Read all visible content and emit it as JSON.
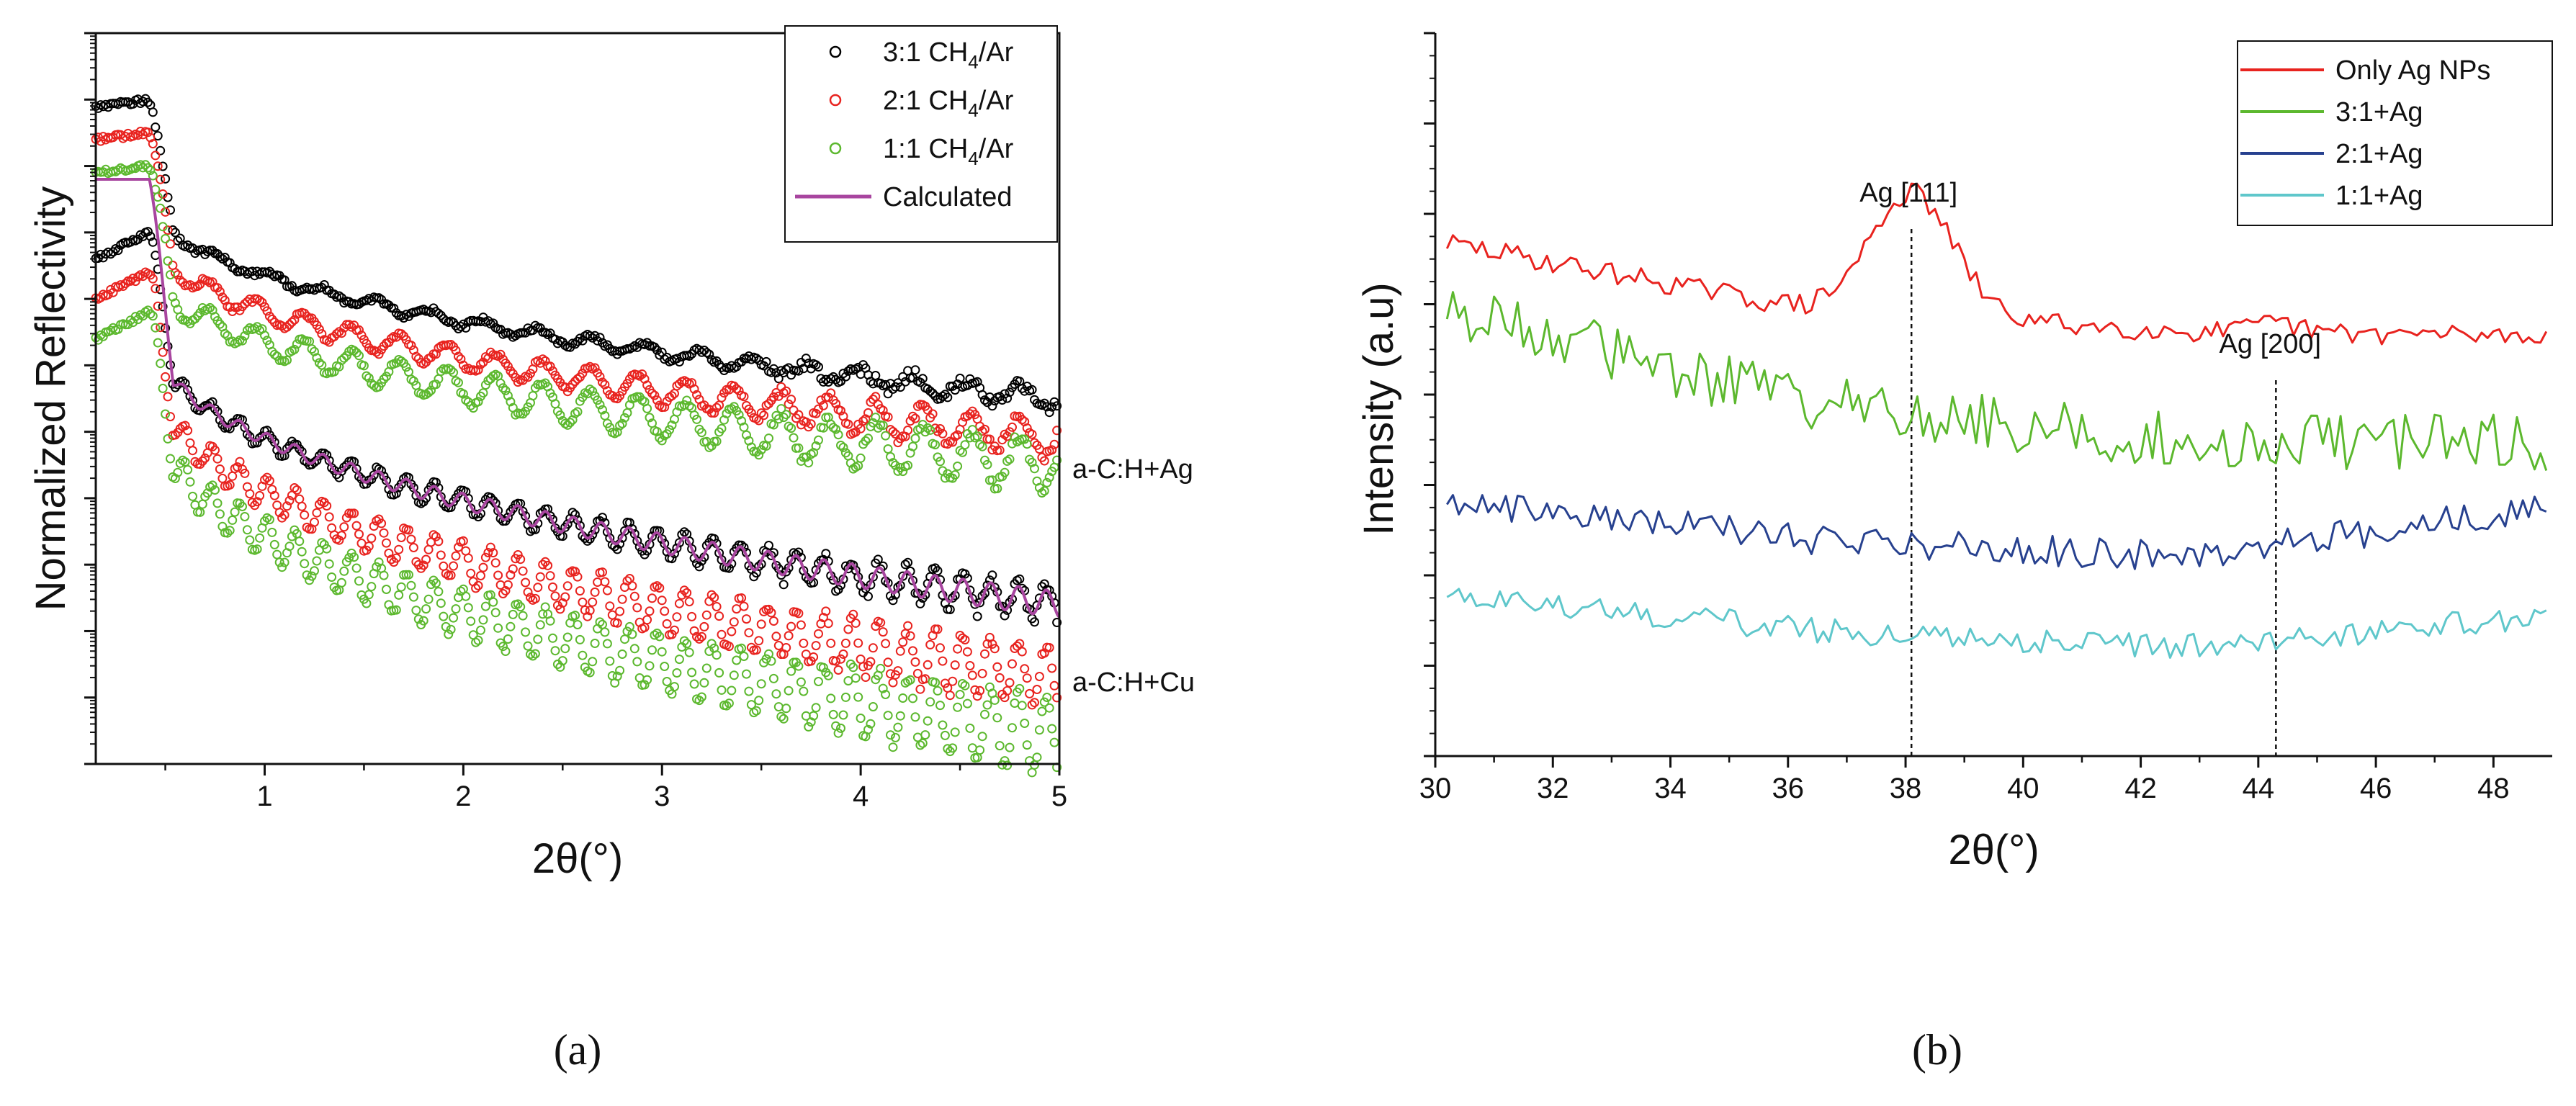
{
  "chart_data": [
    {
      "panel_label": "(a)",
      "type": "scatter",
      "xlabel": "2θ(°)",
      "ylabel": "Normalized Reflectivity",
      "xlim": [
        0.15,
        5
      ],
      "ylog": true,
      "y_decades": 11,
      "y_tick_labels": "none",
      "grid": false,
      "legend_position": "top-right",
      "x_ticks": [
        "1",
        "2",
        "3",
        "4",
        "5"
      ],
      "legend": [
        {
          "label": "3:1 CH",
          "sub": "4",
          "suffix": "/Ar",
          "marker": "circle",
          "color": "#000000"
        },
        {
          "label": "2:1 CH",
          "sub": "4",
          "suffix": "/Ar",
          "marker": "circle",
          "color": "#e8231f"
        },
        {
          "label": "1:1 CH",
          "sub": "4",
          "suffix": "/Ar",
          "marker": "circle",
          "color": "#5cb82e"
        },
        {
          "label": "Calculated",
          "marker": "line",
          "color": "#a8459f"
        }
      ],
      "groups": [
        {
          "annotation": "a-C:H+Ag",
          "series": [
            {
              "name": "3:1 CH4/Ar",
              "color": "#000000",
              "critical_angle": 0.42,
              "plateau_log": 10.0,
              "start_log": 9.9,
              "after_log": 8.6,
              "end_log": 5.5,
              "curvature": 0.44,
              "fringe_period": 0.27,
              "fringe_amp": 0.1,
              "marker": "circle"
            },
            {
              "name": "2:1 CH4/Ar",
              "color": "#e8231f",
              "critical_angle": 0.42,
              "plateau_log": 9.5,
              "start_log": 9.4,
              "after_log": 8.1,
              "end_log": 4.9,
              "curvature": 0.44,
              "fringe_period": 0.24,
              "fringe_amp": 0.2,
              "marker": "circle"
            },
            {
              "name": "1:1 CH4/Ar",
              "color": "#5cb82e",
              "critical_angle": 0.42,
              "plateau_log": 9.0,
              "start_log": 8.9,
              "after_log": 7.6,
              "end_log": 4.5,
              "curvature": 0.44,
              "fringe_period": 0.24,
              "fringe_amp": 0.28,
              "marker": "circle"
            }
          ]
        },
        {
          "annotation": "a-C:H+Cu",
          "series": [
            {
              "name": "3:1 CH4/Ar",
              "color": "#000000",
              "critical_angle": 0.42,
              "plateau_log": 8.0,
              "start_log": 7.6,
              "after_log": 6.7,
              "end_log": 2.4,
              "curvature": 0.42,
              "fringe_period": 0.14,
              "fringe_amp": 0.2,
              "marker": "circle"
            },
            {
              "name": "2:1 CH4/Ar",
              "color": "#e8231f",
              "critical_angle": 0.42,
              "plateau_log": 7.4,
              "start_log": 7.0,
              "after_log": 6.1,
              "end_log": 1.3,
              "curvature": 0.42,
              "fringe_period": 0.14,
              "fringe_amp": 0.34,
              "marker": "circle"
            },
            {
              "name": "1:1 CH4/Ar",
              "color": "#5cb82e",
              "critical_angle": 0.42,
              "plateau_log": 6.8,
              "start_log": 6.4,
              "after_log": 5.6,
              "end_log": 0.4,
              "curvature": 0.42,
              "fringe_period": 0.14,
              "fringe_amp": 0.42,
              "marker": "circle"
            },
            {
              "name": "Calculated",
              "color": "#a8459f",
              "critical_angle": 0.42,
              "plateau_log": 8.8,
              "start_log": 8.8,
              "after_log": 6.7,
              "end_log": 2.4,
              "curvature": 0.42,
              "fringe_period": 0.14,
              "fringe_amp": 0.14,
              "marker": "line"
            }
          ]
        }
      ]
    },
    {
      "panel_label": "(b)",
      "type": "line",
      "xlabel": "2θ(°)",
      "ylabel": "Intensity (a.u)",
      "xlim": [
        30,
        49
      ],
      "x_ticks": [
        30,
        32,
        34,
        36,
        38,
        40,
        42,
        44,
        46,
        48
      ],
      "y_tick_labels": "none",
      "grid": false,
      "legend_position": "top-right",
      "annotations": [
        {
          "text": "Ag [111]",
          "x": 38.1
        },
        {
          "text": "Ag [200]",
          "x": 44.3
        }
      ],
      "series": [
        {
          "name": "Only Ag NPs",
          "color": "#e8231f",
          "baseline": [
            5.7,
            4.95,
            4.7,
            4.65
          ],
          "peaks": [
            {
              "x": 38.1,
              "height": 1.35,
              "width": 1.0
            },
            {
              "x": 44.3,
              "height": 0.1,
              "width": 0.5
            }
          ],
          "noise": 0.12
        },
        {
          "name": "3:1+Ag",
          "color": "#5cb82e",
          "baseline": [
            5.0,
            3.9,
            3.5,
            3.45
          ],
          "peaks": [],
          "noise": 0.32
        },
        {
          "name": "2:1+Ag",
          "color": "#27418f",
          "baseline": [
            2.85,
            2.4,
            2.2,
            2.75
          ],
          "peaks": [],
          "noise": 0.17
        },
        {
          "name": "1:1+Ag",
          "color": "#5fc7cb",
          "baseline": [
            1.8,
            1.4,
            1.2,
            1.55
          ],
          "peaks": [],
          "noise": 0.14
        }
      ]
    }
  ]
}
